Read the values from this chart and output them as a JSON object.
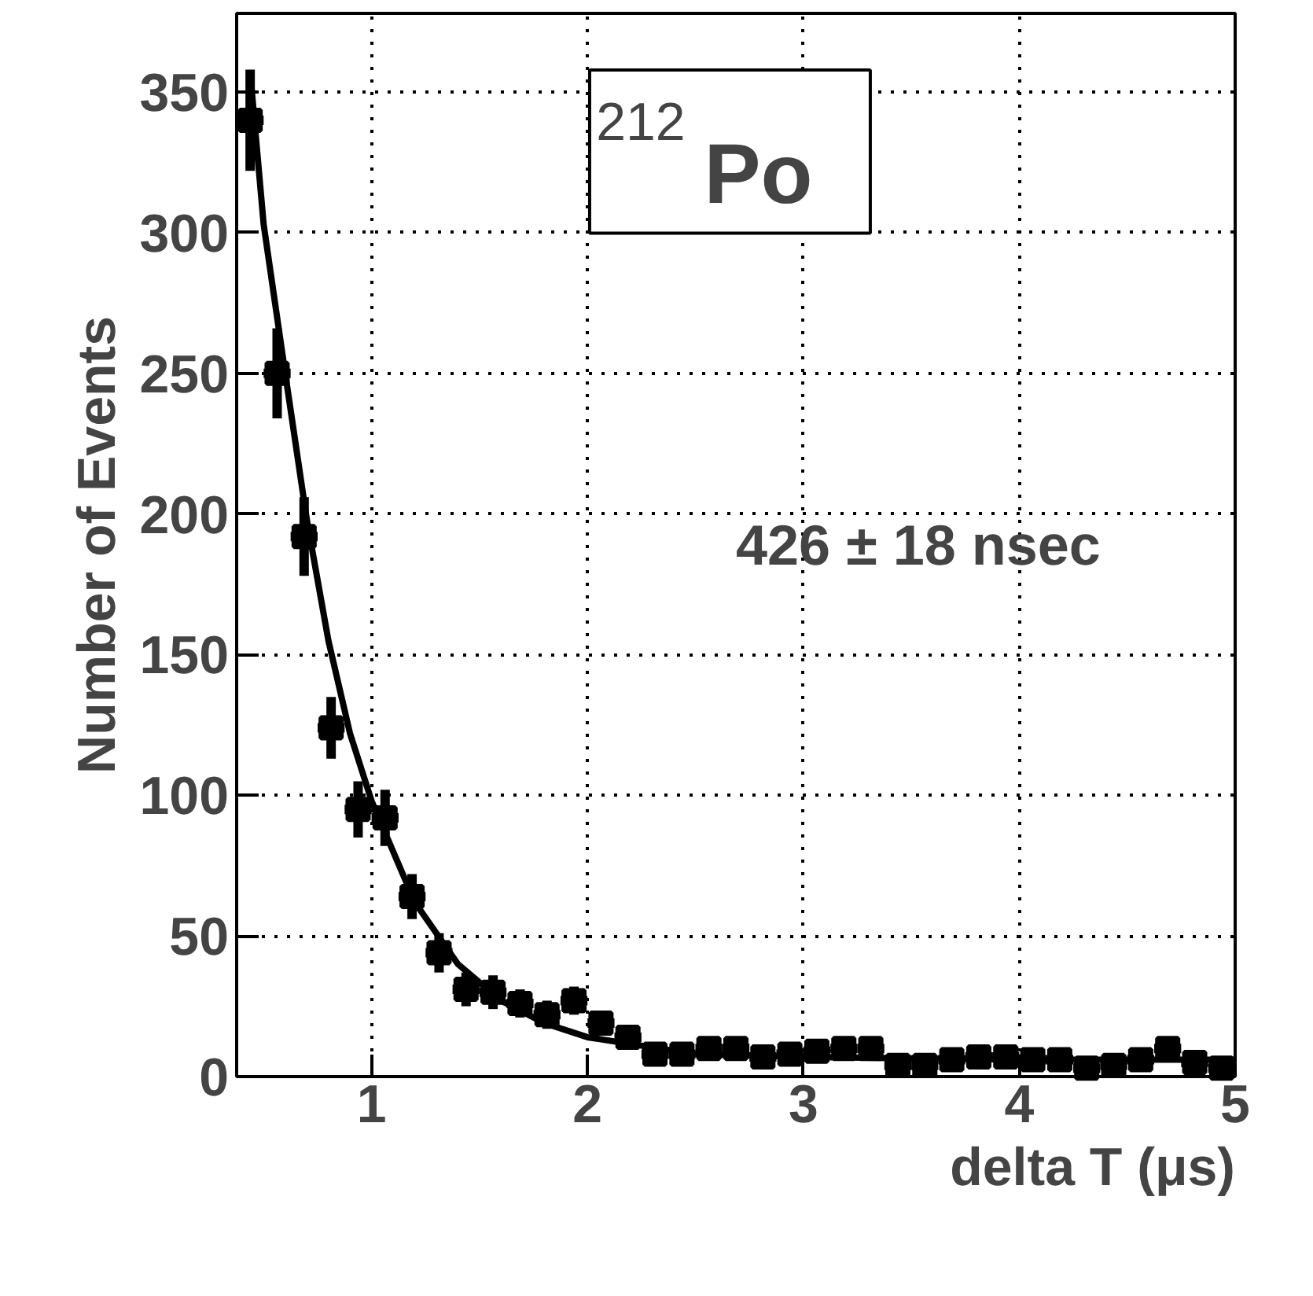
{
  "chart_data": {
    "type": "scatter",
    "xlabel": "delta T (μs)",
    "ylabel": "Number of Events",
    "annotations": [
      "$^{212}$Po",
      "426 ± 18 nsec"
    ],
    "xlim": [
      0.375,
      5
    ],
    "ylim": [
      0,
      378
    ],
    "xticks": [
      1,
      2,
      3,
      4,
      5
    ],
    "yticks": [
      0,
      50,
      100,
      150,
      200,
      250,
      300,
      350
    ],
    "grid": true,
    "marker": "square",
    "series": [
      {
        "color": "#000000",
        "x": [
          0.4375,
          0.5625,
          0.6875,
          0.8125,
          0.9375,
          1.0625,
          1.1875,
          1.3125,
          1.4375,
          1.5625,
          1.6875,
          1.8125,
          1.9375,
          2.0625,
          2.1875,
          2.3125,
          2.4375,
          2.5625,
          2.6875,
          2.8125,
          2.9375,
          3.0625,
          3.1875,
          3.3125,
          3.4375,
          3.5625,
          3.6875,
          3.8125,
          3.9375,
          4.0625,
          4.1875,
          4.3125,
          4.4375,
          4.5625,
          4.6875,
          4.8125,
          4.9375
        ],
        "values": [
          340,
          250,
          192,
          124,
          95,
          92,
          64,
          44,
          31,
          30,
          26,
          22,
          27,
          19,
          14,
          8,
          8,
          10,
          10,
          7,
          8,
          9,
          10,
          10,
          4,
          4,
          6,
          7,
          7,
          6,
          6,
          3,
          4,
          6,
          10,
          5,
          3
        ],
        "errors": [
          18,
          16,
          14,
          11,
          10,
          10,
          8,
          7,
          6,
          6,
          5,
          5,
          5,
          4,
          4,
          3,
          3,
          3,
          3,
          3,
          3,
          3,
          3,
          3,
          2,
          2,
          2,
          3,
          3,
          2,
          2,
          2,
          2,
          2,
          3,
          2,
          2
        ],
        "xerrors": [
          0.0625,
          0.0625,
          0.0625,
          0.0625,
          0.0625,
          0.0625,
          0.0625,
          0.0625,
          0.0625,
          0.0625,
          0.0625,
          0.0625,
          0.0625,
          0.0625,
          0.0625,
          0.0625,
          0.0625,
          0.0625,
          0.0625,
          0.0625,
          0.0625,
          0.0625,
          0.0625,
          0.0625,
          0.0625,
          0.0625,
          0.0625,
          0.0625,
          0.0625,
          0.0625,
          0.0625,
          0.0625,
          0.0625,
          0.0625,
          0.0625,
          0.0625,
          0.0625
        ]
      },
      {
        "type": "line",
        "color": "#000000",
        "marker": "none",
        "x": [
          0.44,
          0.5,
          0.6,
          0.7,
          0.8,
          0.9,
          1.0,
          1.2,
          1.4,
          1.6,
          1.8,
          2.0,
          2.5,
          3.0,
          4.0,
          5.0
        ],
        "values": [
          355,
          303,
          250,
          198,
          155,
          122,
          98,
          62,
          40,
          27,
          19,
          14,
          8,
          7,
          6,
          6
        ]
      }
    ]
  }
}
